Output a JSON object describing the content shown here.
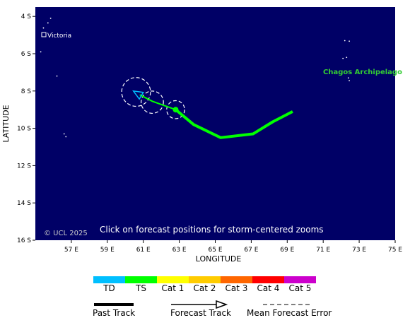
{
  "map": {
    "lon_min": 55,
    "lon_max": 75,
    "lat_top": -3.5,
    "lat_bottom": -16,
    "ocean_color": "#000066",
    "land_color": "#ffffff",
    "x_ticks": [
      {
        "lon": 57,
        "label": "57 E"
      },
      {
        "lon": 59,
        "label": "59 E"
      },
      {
        "lon": 61,
        "label": "61 E"
      },
      {
        "lon": 63,
        "label": "63 E"
      },
      {
        "lon": 65,
        "label": "65 E"
      },
      {
        "lon": 67,
        "label": "67 E"
      },
      {
        "lon": 69,
        "label": "69 E"
      },
      {
        "lon": 71,
        "label": "71 E"
      },
      {
        "lon": 73,
        "label": "73 E"
      },
      {
        "lon": 75,
        "label": "75 E"
      }
    ],
    "y_ticks": [
      {
        "lat": -4,
        "label": "4 S"
      },
      {
        "lat": -6,
        "label": "6 S"
      },
      {
        "lat": -8,
        "label": "8 S"
      },
      {
        "lat": -10,
        "label": "10 S"
      },
      {
        "lat": -12,
        "label": "12 S"
      },
      {
        "lat": -14,
        "label": "14 S"
      },
      {
        "lat": -16,
        "label": "16 S"
      }
    ],
    "xlabel": "LONGITUDE",
    "ylabel": "LATITUDE",
    "place_labels": {
      "victoria": "Victoria",
      "chagos": "Chagos Archipelago"
    },
    "chagos_color": "#33cc33",
    "copyright": "© UCL 2025",
    "instruction": "Click on forecast positions for storm-centered zooms",
    "islands": [
      {
        "lon": 55.45,
        "lat": -4.62
      },
      {
        "lon": 55.7,
        "lat": -4.35
      },
      {
        "lon": 55.85,
        "lat": -4.1
      },
      {
        "lon": 55.3,
        "lat": -5.9
      },
      {
        "lon": 56.2,
        "lat": -7.2
      },
      {
        "lon": 56.6,
        "lat": -10.3
      },
      {
        "lon": 56.7,
        "lat": -10.45
      },
      {
        "lon": 72.2,
        "lat": -5.3
      },
      {
        "lon": 72.45,
        "lat": -5.33
      },
      {
        "lon": 72.3,
        "lat": -6.2
      },
      {
        "lon": 72.1,
        "lat": -6.25
      },
      {
        "lon": 72.4,
        "lat": -7.3
      },
      {
        "lon": 72.45,
        "lat": -7.45
      }
    ]
  },
  "storm": {
    "past_track": [
      {
        "lon": 69.3,
        "lat": -9.1
      },
      {
        "lon": 68.2,
        "lat": -9.65
      },
      {
        "lon": 67.1,
        "lat": -10.3
      },
      {
        "lon": 65.3,
        "lat": -10.5
      },
      {
        "lon": 63.8,
        "lat": -9.8
      },
      {
        "lon": 62.8,
        "lat": -9.0
      }
    ],
    "past_color": "#00ff00",
    "current_position": {
      "lon": 62.8,
      "lat": -9.0
    },
    "forecast_track": [
      {
        "lon": 62.8,
        "lat": -9.0
      },
      {
        "lon": 61.5,
        "lat": -8.55
      },
      {
        "lon": 60.8,
        "lat": -8.2
      }
    ],
    "forecast_end": {
      "lon": 60.45,
      "lat": -8.0
    },
    "forecast_color": "#00ff00",
    "forecast_arrow_color": "#00bfff",
    "error_circles": [
      {
        "lon": 62.8,
        "lat": -9.0,
        "r_deg": 0.5
      },
      {
        "lon": 61.5,
        "lat": -8.6,
        "r_deg": 0.62
      },
      {
        "lon": 60.6,
        "lat": -8.05,
        "r_deg": 0.8
      }
    ]
  },
  "legend": {
    "categories": [
      {
        "label": "TD",
        "color": "#00bfff"
      },
      {
        "label": "TS",
        "color": "#00ff00"
      },
      {
        "label": "Cat 1",
        "color": "#ffff00"
      },
      {
        "label": "Cat 2",
        "color": "#ffcc00"
      },
      {
        "label": "Cat 3",
        "color": "#ff6600"
      },
      {
        "label": "Cat 4",
        "color": "#ff0000"
      },
      {
        "label": "Cat 5",
        "color": "#cc00cc"
      }
    ],
    "past_track_label": "Past Track",
    "forecast_track_label": "Forecast Track",
    "error_label": "Mean Forecast Error"
  }
}
